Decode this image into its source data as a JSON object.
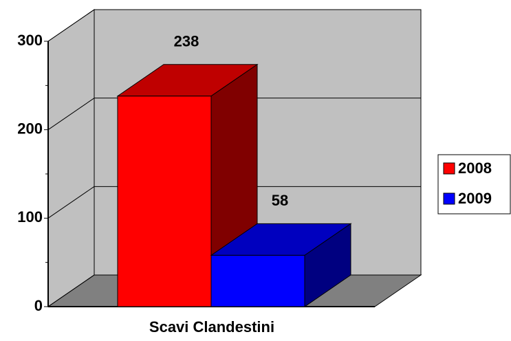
{
  "chart_data": {
    "type": "bar3d",
    "categories": [
      "Scavi Clandestini"
    ],
    "series": [
      {
        "name": "2008",
        "color": "#ff0000",
        "values": [
          238
        ]
      },
      {
        "name": "2009",
        "color": "#0000ff",
        "values": [
          58
        ]
      }
    ],
    "ylim": [
      0,
      300
    ],
    "yticks": [
      0,
      100,
      200,
      300
    ],
    "yminorticks": [
      50,
      150,
      250
    ],
    "grid": true,
    "legend": "right"
  }
}
